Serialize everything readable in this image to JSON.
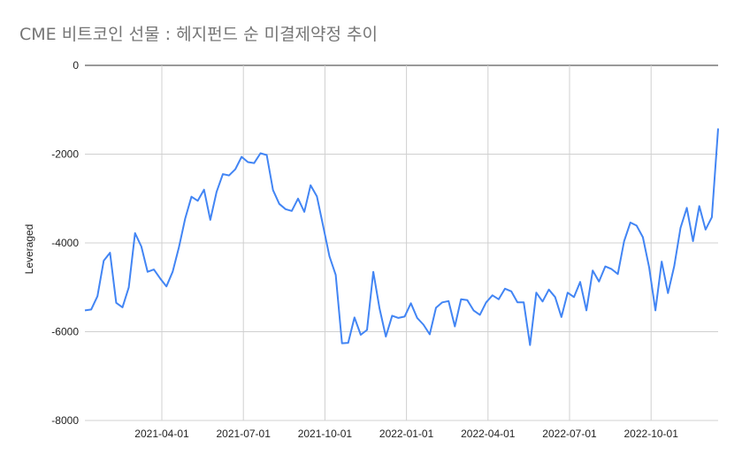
{
  "chart_data": {
    "type": "line",
    "title": "CME 비트코인 선물 : 헤지펀드 순 미결제약정 추이",
    "xlabel": "",
    "ylabel": "Leveraged",
    "ylim": [
      -8000,
      0
    ],
    "yticks": [
      0,
      -2000,
      -4000,
      -6000,
      -8000
    ],
    "xticks": [
      "2021-04-01",
      "2021-07-01",
      "2021-10-01",
      "2022-01-01",
      "2022-04-01",
      "2022-07-01",
      "2022-10-01"
    ],
    "grid": true,
    "legend": "none",
    "colors": {
      "line": "#4285f4",
      "grid": "#d0d0d0",
      "zero_axis": "#333333"
    },
    "series": [
      {
        "values": [
          -5520,
          -5500,
          -5200,
          -4400,
          -4220,
          -5350,
          -5450,
          -5000,
          -3780,
          -4080,
          -4650,
          -4600,
          -4800,
          -4980,
          -4650,
          -4100,
          -3450,
          -2960,
          -3050,
          -2800,
          -3480,
          -2850,
          -2450,
          -2480,
          -2340,
          -2060,
          -2180,
          -2200,
          -1980,
          -2020,
          -2810,
          -3120,
          -3240,
          -3280,
          -3000,
          -3300,
          -2700,
          -2950,
          -3620,
          -4300,
          -4720,
          -6260,
          -6250,
          -5680,
          -6070,
          -5960,
          -4650,
          -5480,
          -6110,
          -5640,
          -5690,
          -5660,
          -5360,
          -5690,
          -5840,
          -6060,
          -5460,
          -5340,
          -5310,
          -5880,
          -5270,
          -5290,
          -5520,
          -5620,
          -5340,
          -5180,
          -5270,
          -5030,
          -5090,
          -5340,
          -5340,
          -6300,
          -5120,
          -5320,
          -5050,
          -5220,
          -5670,
          -5120,
          -5220,
          -4880,
          -5520,
          -4620,
          -4870,
          -4530,
          -4590,
          -4700,
          -3960,
          -3540,
          -3610,
          -3870,
          -4550,
          -5520,
          -4420,
          -5130,
          -4520,
          -3660,
          -3210,
          -3960,
          -3170,
          -3700,
          -3420,
          -1420
        ]
      }
    ]
  }
}
